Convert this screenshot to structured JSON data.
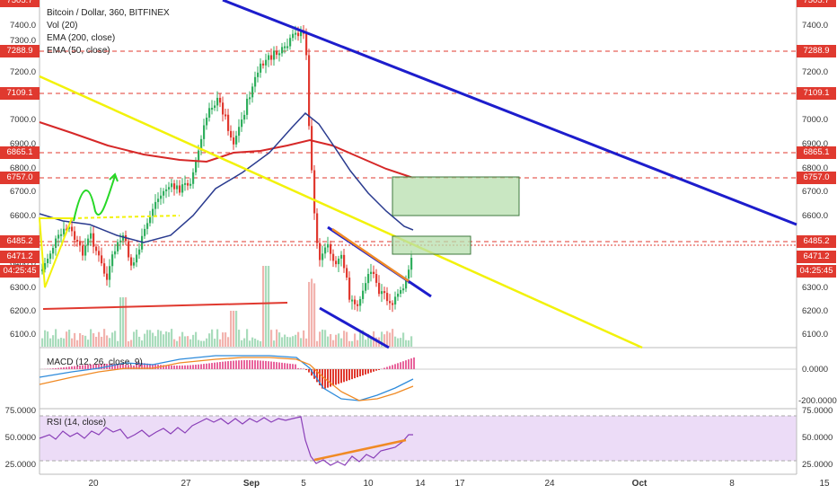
{
  "legend": {
    "symbol": "Bitcoin / Dollar, 360, BITFINEX",
    "vol": "Vol (20)",
    "ema200": "EMA (200, close)",
    "ema50": "EMA (50, close)"
  },
  "macd_title": "MACD (12, 26, close, 9)",
  "rsi_title": "RSI (14, close)",
  "colors": {
    "down": "#e0392f",
    "up": "#2fae5d",
    "ema200": "#d62828",
    "ema50": "#2a3b8f",
    "trend_blue": "#1d1dcc",
    "trend_yellow": "#f2f20a",
    "rsi_bg": "#ecdcf7",
    "box_fill": "#b7dfae"
  },
  "price_axis_left": [
    "7400.0",
    "7300.0",
    "7200.0",
    "7000.0",
    "6900.0",
    "6800.0",
    "6700.0",
    "6600.0",
    "6400.0",
    "6300.0",
    "6200.0",
    "6100.0"
  ],
  "price_axis_right": [
    "7400.0",
    "7200.0",
    "7000.0",
    "6900.0",
    "6800.0",
    "6700.0",
    "6600.0",
    "6300.0",
    "6200.0",
    "6100.0"
  ],
  "price_levels": [
    {
      "label": "7288.9",
      "side": "both"
    },
    {
      "label": "7109.1",
      "side": "both"
    },
    {
      "label": "6865.1",
      "side": "both"
    },
    {
      "label": "6757.0",
      "side": "both"
    },
    {
      "label": "6485.2",
      "side": "both"
    },
    {
      "label": "6471.2",
      "side": "both"
    },
    {
      "label": "04:25:45",
      "side": "both"
    }
  ],
  "top_label": "7505.7",
  "macd_axis": [
    "0.0000",
    "-200.0000"
  ],
  "rsi_axis": [
    "75.0000",
    "50.0000",
    "25.0000"
  ],
  "date_ticks": [
    {
      "label": "20"
    },
    {
      "label": "27"
    },
    {
      "label": "Sep",
      "bold": true
    },
    {
      "label": "5"
    },
    {
      "label": "10"
    },
    {
      "label": "14"
    },
    {
      "label": "17"
    },
    {
      "label": "24"
    },
    {
      "label": "Oct",
      "bold": true
    },
    {
      "label": "8"
    },
    {
      "label": "15"
    }
  ]
}
